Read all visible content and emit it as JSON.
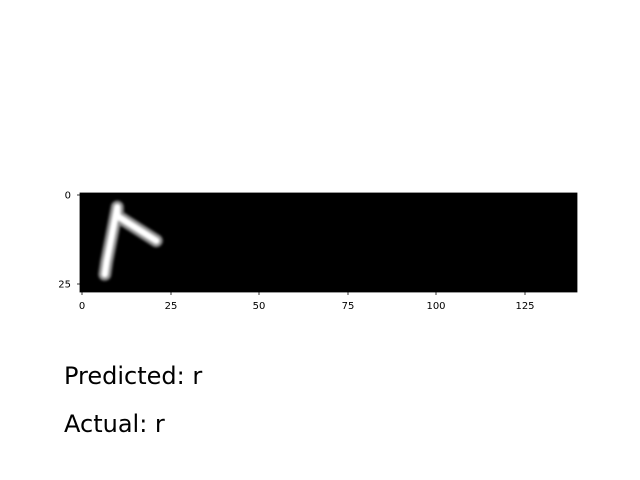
{
  "image_axes": {
    "x_ticks": [
      "0",
      "25",
      "50",
      "75",
      "100",
      "125"
    ],
    "y_ticks": [
      "0",
      "25"
    ],
    "image_size": {
      "width": 140,
      "height": 28
    },
    "colormap": "gray",
    "stroke": [
      [
        10,
        3.5
      ],
      [
        7,
        19
      ],
      [
        6.5,
        22.5
      ],
      [
        10,
        6
      ],
      [
        21,
        13
      ]
    ]
  },
  "prediction": {
    "predicted_label": "Predicted: r",
    "actual_label": "Actual: r"
  }
}
